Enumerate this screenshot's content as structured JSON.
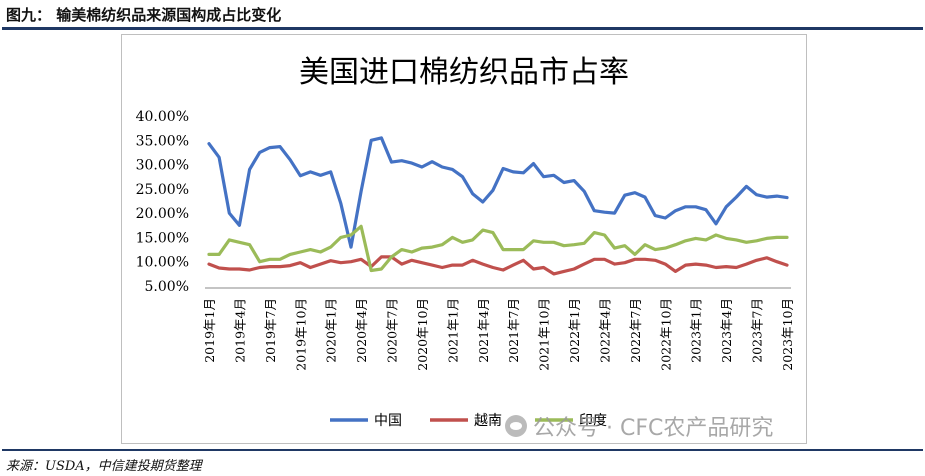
{
  "figure": {
    "label": "图九：",
    "title": "输美棉纺织品来源国构成占比变化",
    "source": "来源：USDA，中信建投期货整理",
    "watermark": "公众号 · CFC农产品研究"
  },
  "colors": {
    "china": "#4472c4",
    "vietnam": "#c0504d",
    "india": "#9bbb59",
    "rule": "#1f3864"
  },
  "chart_data": {
    "type": "line",
    "title": "美国进口棉纺织品市占率",
    "ylim": [
      5,
      40
    ],
    "yticks": [
      "5.00%",
      "10.00%",
      "15.00%",
      "20.00%",
      "25.00%",
      "30.00%",
      "35.00%",
      "40.00%"
    ],
    "x_tick_labels": [
      "2019年1月",
      "2019年4月",
      "2019年7月",
      "2019年10月",
      "2020年1月",
      "2020年4月",
      "2020年7月",
      "2020年10月",
      "2021年1月",
      "2021年4月",
      "2021年7月",
      "2021年10月",
      "2022年1月",
      "2022年4月",
      "2022年7月",
      "2022年10月",
      "2023年1月",
      "2023年4月",
      "2023年7月",
      "2023年10月"
    ],
    "x_start": "2019-01",
    "legend_position": "bottom",
    "grid": false,
    "series": [
      {
        "name": "中国",
        "color_key": "china",
        "values": [
          34.3,
          31.5,
          20.0,
          17.5,
          29.0,
          32.5,
          33.5,
          33.7,
          31.0,
          27.7,
          28.5,
          27.8,
          28.5,
          22.0,
          13.0,
          24.5,
          35.0,
          35.5,
          30.5,
          30.8,
          30.3,
          29.5,
          30.6,
          29.5,
          29.0,
          27.5,
          24.0,
          22.3,
          24.7,
          29.2,
          28.5,
          28.3,
          30.2,
          27.5,
          27.8,
          26.3,
          26.7,
          24.5,
          20.5,
          20.2,
          20.0,
          23.7,
          24.2,
          23.3,
          19.5,
          19.0,
          20.5,
          21.3,
          21.3,
          20.7,
          17.8,
          21.3,
          23.3,
          25.5,
          23.8,
          23.3,
          23.5,
          23.2
        ]
      },
      {
        "name": "越南",
        "color_key": "vietnam",
        "values": [
          9.5,
          8.7,
          8.5,
          8.5,
          8.3,
          8.8,
          9.0,
          9.0,
          9.2,
          9.8,
          8.8,
          9.5,
          10.2,
          9.8,
          10.0,
          10.5,
          9.0,
          11.0,
          11.0,
          9.5,
          10.3,
          9.8,
          9.3,
          8.8,
          9.3,
          9.3,
          10.3,
          9.5,
          8.8,
          8.3,
          9.3,
          10.3,
          8.5,
          8.8,
          7.5,
          8.0,
          8.5,
          9.5,
          10.5,
          10.5,
          9.5,
          9.8,
          10.5,
          10.5,
          10.3,
          9.5,
          8.0,
          9.3,
          9.5,
          9.3,
          8.8,
          9.0,
          8.8,
          9.5,
          10.3,
          10.8,
          10.0,
          9.3
        ]
      },
      {
        "name": "印度",
        "color_key": "india",
        "values": [
          11.5,
          11.5,
          14.5,
          14.0,
          13.5,
          10.0,
          10.5,
          10.5,
          11.5,
          12.0,
          12.5,
          12.0,
          13.0,
          15.0,
          15.5,
          17.3,
          8.2,
          8.5,
          11.0,
          12.5,
          12.0,
          12.8,
          13.0,
          13.5,
          15.0,
          14.0,
          14.5,
          16.5,
          16.0,
          12.5,
          12.5,
          12.5,
          14.3,
          14.0,
          14.0,
          13.3,
          13.5,
          13.8,
          16.0,
          15.5,
          12.8,
          13.3,
          11.5,
          13.5,
          12.5,
          12.8,
          13.5,
          14.3,
          14.8,
          14.5,
          15.5,
          14.8,
          14.5,
          14.0,
          14.3,
          14.8,
          15.0,
          15.0
        ]
      }
    ]
  }
}
